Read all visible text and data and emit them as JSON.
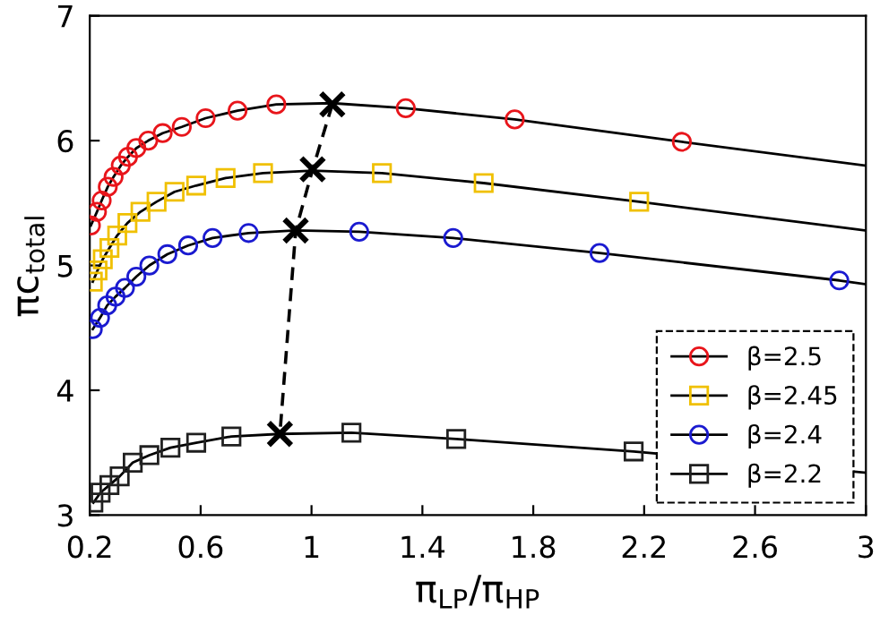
{
  "chart_data": {
    "type": "line",
    "xlabel": "π$_{LP}$/π$_{HP}$",
    "ylabel": "πc$_{total}$",
    "xlim": [
      0.2,
      3
    ],
    "ylim": [
      3,
      7
    ],
    "xticks": [
      0.2,
      0.6,
      1,
      1.4,
      1.8,
      2.2,
      2.6,
      3
    ],
    "yticks": [
      3,
      4,
      5,
      6,
      7
    ],
    "grid": false,
    "legend": "bottom right",
    "series": [
      {
        "name": "β=2.5",
        "type": "scatter",
        "marker": "circle",
        "color": "#e8151b",
        "x": [
          0.204,
          0.226,
          0.243,
          0.265,
          0.286,
          0.312,
          0.338,
          0.368,
          0.411,
          0.463,
          0.532,
          0.618,
          0.733,
          0.873,
          1.34,
          1.733,
          2.336
        ],
        "values": [
          5.32,
          5.43,
          5.52,
          5.63,
          5.71,
          5.8,
          5.87,
          5.94,
          6.0,
          6.06,
          6.11,
          6.18,
          6.24,
          6.29,
          6.26,
          6.17,
          5.99
        ]
      },
      {
        "marker": "none",
        "color": "#000000",
        "x": [
          0.204,
          0.226,
          0.243,
          0.265,
          0.286,
          0.312,
          0.338,
          0.368,
          0.411,
          0.463,
          0.532,
          0.618,
          0.733,
          0.873,
          1.075,
          1.34,
          1.733,
          2.336,
          3
        ],
        "values": [
          5.32,
          5.43,
          5.52,
          5.63,
          5.71,
          5.8,
          5.87,
          5.94,
          6.0,
          6.06,
          6.11,
          6.18,
          6.24,
          6.29,
          6.3,
          6.26,
          6.17,
          5.99,
          5.8
        ]
      },
      {
        "name": "β=2.45",
        "type": "scatter",
        "marker": "square",
        "color": "#f0c000",
        "x": [
          0.211,
          0.228,
          0.247,
          0.271,
          0.299,
          0.336,
          0.383,
          0.441,
          0.506,
          0.584,
          0.69,
          0.825,
          1.254,
          1.621,
          2.182
        ],
        "values": [
          4.87,
          4.96,
          5.05,
          5.14,
          5.24,
          5.34,
          5.43,
          5.51,
          5.59,
          5.64,
          5.7,
          5.74,
          5.74,
          5.66,
          5.51
        ]
      },
      {
        "marker": "none",
        "color": "#000000",
        "x": [
          0.211,
          0.228,
          0.247,
          0.271,
          0.299,
          0.336,
          0.383,
          0.441,
          0.506,
          0.584,
          0.69,
          0.825,
          1.004,
          1.254,
          1.621,
          2.182,
          3
        ],
        "values": [
          4.87,
          4.96,
          5.05,
          5.14,
          5.24,
          5.34,
          5.43,
          5.51,
          5.59,
          5.64,
          5.7,
          5.74,
          5.76,
          5.74,
          5.66,
          5.51,
          5.28
        ]
      },
      {
        "name": "β=2.4",
        "type": "scatter",
        "marker": "circle",
        "color": "#1a1ad0",
        "x": [
          0.211,
          0.237,
          0.263,
          0.293,
          0.327,
          0.368,
          0.415,
          0.48,
          0.555,
          0.643,
          0.773,
          1.172,
          1.511,
          2.039,
          2.904
        ],
        "values": [
          4.49,
          4.58,
          4.68,
          4.75,
          4.82,
          4.91,
          5.0,
          5.09,
          5.16,
          5.22,
          5.26,
          5.27,
          5.22,
          5.1,
          4.88
        ]
      },
      {
        "marker": "none",
        "color": "#000000",
        "x": [
          0.211,
          0.237,
          0.263,
          0.293,
          0.327,
          0.368,
          0.415,
          0.48,
          0.555,
          0.643,
          0.773,
          0.943,
          1.172,
          1.511,
          2.039,
          2.904,
          3
        ],
        "values": [
          4.49,
          4.58,
          4.68,
          4.75,
          4.82,
          4.91,
          5.0,
          5.09,
          5.16,
          5.22,
          5.26,
          5.28,
          5.27,
          5.22,
          5.1,
          4.88,
          4.85
        ]
      },
      {
        "name": "β=2.2",
        "type": "scatter",
        "marker": "square",
        "color": "#202020",
        "x": [
          0.213,
          0.239,
          0.271,
          0.308,
          0.355,
          0.415,
          0.491,
          0.584,
          0.711,
          1.144,
          1.522,
          2.162
        ],
        "values": [
          3.1,
          3.18,
          3.24,
          3.31,
          3.42,
          3.48,
          3.54,
          3.58,
          3.63,
          3.66,
          3.61,
          3.51
        ]
      },
      {
        "marker": "none",
        "color": "#000000",
        "x": [
          0.213,
          0.239,
          0.271,
          0.308,
          0.355,
          0.415,
          0.491,
          0.584,
          0.711,
          0.886,
          1.144,
          1.522,
          2.162,
          3
        ],
        "values": [
          3.1,
          3.18,
          3.24,
          3.31,
          3.42,
          3.48,
          3.54,
          3.58,
          3.63,
          3.65,
          3.66,
          3.61,
          3.51,
          3.34
        ]
      },
      {
        "marker": "cross",
        "line_style": "dashed",
        "color": "#000000",
        "x": [
          1.075,
          1.004,
          0.943,
          0.886
        ],
        "values": [
          6.29,
          5.77,
          5.28,
          3.65
        ]
      }
    ]
  }
}
